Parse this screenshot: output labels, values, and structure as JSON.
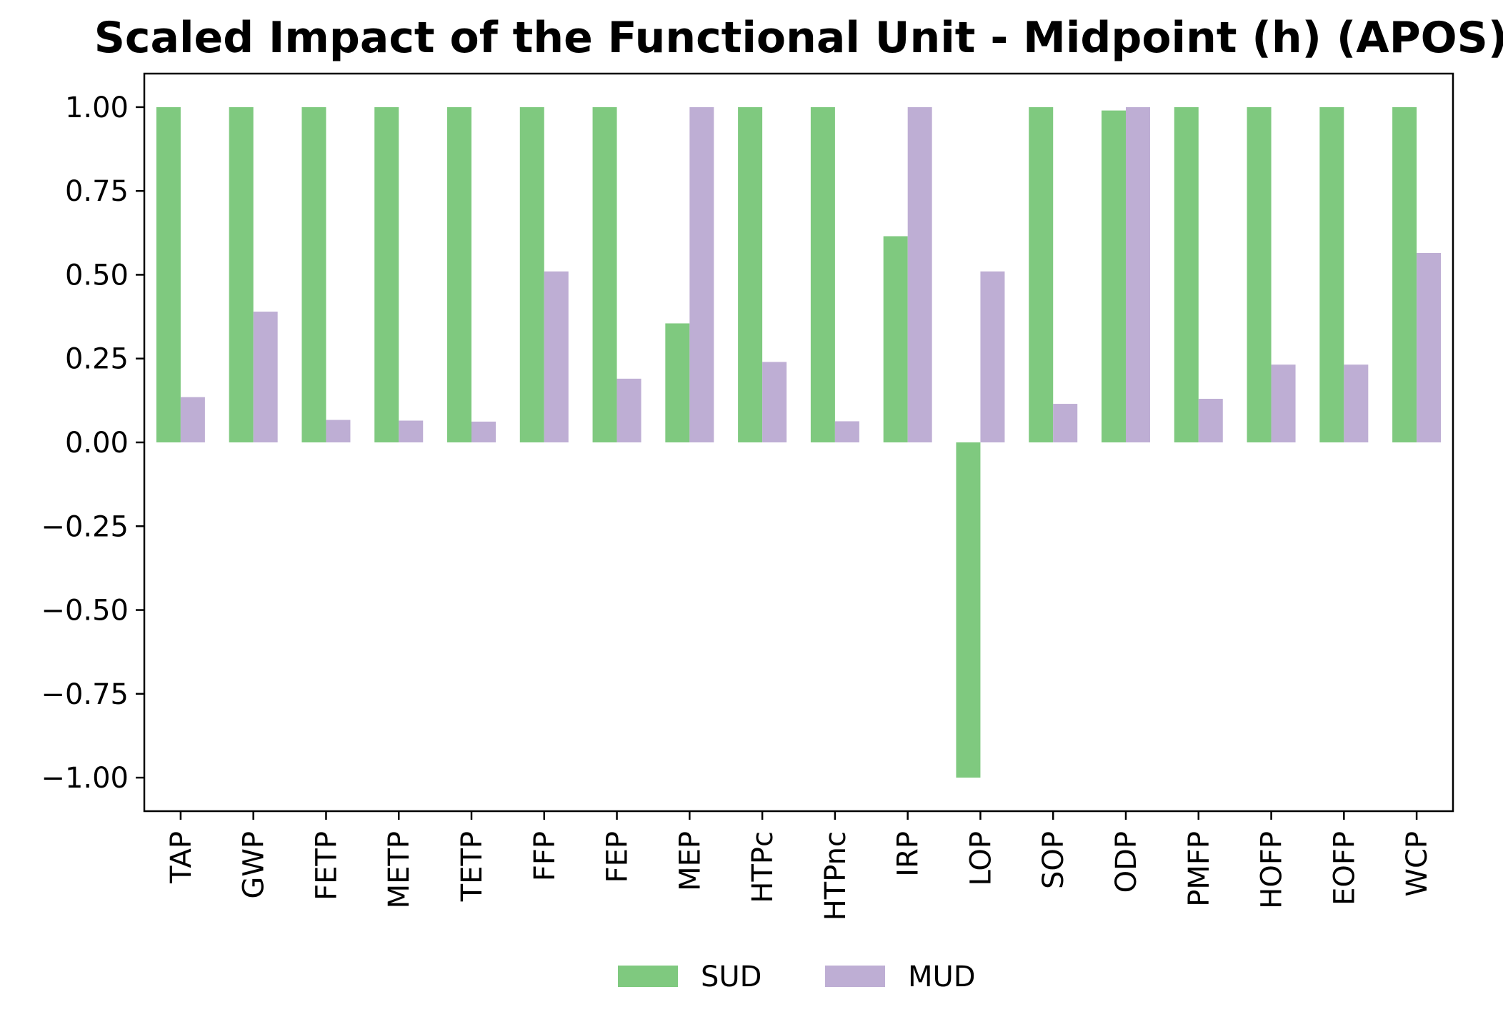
{
  "chart_data": {
    "type": "bar",
    "title": "Scaled Impact of the Functional Unit - Midpoint (h) (APOS)",
    "xlabel": "",
    "ylabel": "",
    "ylim": [
      -1.1,
      1.1
    ],
    "yticks": [
      1.0,
      0.75,
      0.5,
      0.25,
      0.0,
      -0.25,
      -0.5,
      -0.75,
      -1.0
    ],
    "ytick_labels": [
      "1.00",
      "0.75",
      "0.50",
      "0.25",
      "0.00",
      "−0.25",
      "−0.50",
      "−0.75",
      "−1.00"
    ],
    "categories": [
      "TAP",
      "GWP",
      "FETP",
      "METP",
      "TETP",
      "FFP",
      "FEP",
      "MEP",
      "HTPc",
      "HTPnc",
      "IRP",
      "LOP",
      "SOP",
      "ODP",
      "PMFP",
      "HOFP",
      "EOFP",
      "WCP"
    ],
    "series": [
      {
        "name": "SUD",
        "color": "#7fc97f",
        "values": [
          1.0,
          1.0,
          1.0,
          1.0,
          1.0,
          1.0,
          1.0,
          0.355,
          1.0,
          1.0,
          0.615,
          -1.0,
          1.0,
          0.99,
          1.0,
          1.0,
          1.0,
          1.0
        ]
      },
      {
        "name": "MUD",
        "color": "#beaed4",
        "values": [
          0.135,
          0.39,
          0.067,
          0.065,
          0.062,
          0.51,
          0.19,
          1.0,
          0.24,
          0.063,
          1.0,
          0.51,
          0.115,
          1.0,
          0.13,
          0.232,
          0.232,
          0.565
        ]
      }
    ],
    "grid": false,
    "legend": "bottom-center"
  }
}
